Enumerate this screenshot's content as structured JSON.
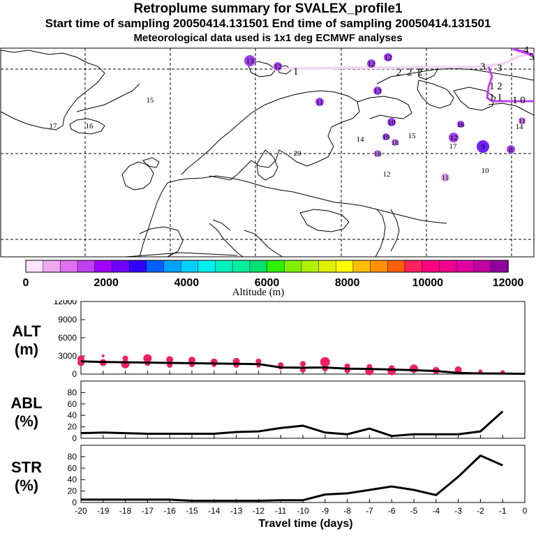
{
  "header": {
    "title": "Retroplume summary for SVALEX_profile1",
    "sampling": "Start time of sampling 20050414.131501     End time of sampling 20050414.131501",
    "met": "Meteorological data used is 1x1 deg ECMWF analyses"
  },
  "colorbar": {
    "label": "Altitude (m)",
    "ticks": [
      0,
      2000,
      4000,
      6000,
      8000,
      10000,
      12000
    ],
    "colors": [
      "#ffe4ff",
      "#f0a8f0",
      "#e070f0",
      "#c040f0",
      "#a000ff",
      "#7000ff",
      "#3000ff",
      "#0060ff",
      "#00a0ff",
      "#00d0ff",
      "#00f0f0",
      "#00f0c0",
      "#00f0a0",
      "#00e070",
      "#30f000",
      "#80f000",
      "#b0f000",
      "#e0f000",
      "#ffff00",
      "#ffc000",
      "#ff9000",
      "#ff6000",
      "#ff2060",
      "#ff0080",
      "#f00090",
      "#e000a0",
      "#c000a0",
      "#9000a0"
    ]
  },
  "map": {
    "labels": [
      {
        "text": "13",
        "color": "#a040f0"
      },
      {
        "text": "12",
        "color": "#a040f0"
      },
      {
        "text": "12",
        "color": "#a040f0"
      },
      {
        "text": "12",
        "color": "#a040f0"
      },
      {
        "text": "13",
        "color": "#a040f0"
      },
      {
        "text": "11",
        "color": "#a040f0"
      },
      {
        "text": "15",
        "color": "#a040f0"
      },
      {
        "text": "17",
        "color": "#a040f0"
      },
      {
        "text": "16",
        "color": "#a040f0"
      },
      {
        "text": "10",
        "color": "#a040f0"
      },
      {
        "text": "19",
        "color": "#a040f0"
      },
      {
        "text": "15",
        "color": "#a040f0"
      },
      {
        "text": "18",
        "color": "#c070f0"
      },
      {
        "text": "14",
        "color": "#a040f0"
      },
      {
        "text": "18",
        "color": "#c070f0"
      },
      {
        "text": "20",
        "color": "#a040f0"
      },
      {
        "text": "16",
        "color": "#a040f0"
      },
      {
        "text": "12",
        "color": "#a040f0"
      },
      {
        "text": "17",
        "color": "#c070f0"
      },
      {
        "text": "9",
        "color": "#7020ff"
      },
      {
        "text": "8",
        "color": "#a040f0"
      },
      {
        "text": "11",
        "color": "#c070f0"
      },
      {
        "text": "14",
        "color": "#c070f0"
      },
      {
        "text": "12",
        "color": "#e0a0f0"
      },
      {
        "text": "11",
        "color": "#e0a0f0"
      },
      {
        "text": "10",
        "color": "#e0a0f0"
      }
    ],
    "trajectory_labels": [
      "1",
      "2",
      "2",
      "2",
      "3",
      "3",
      "4",
      "5",
      "1 2",
      "1 1",
      "1 0"
    ]
  },
  "chart_data": [
    {
      "type": "line",
      "panel": "ALT",
      "ylabel": "ALT (m)",
      "ylim": [
        0,
        12000
      ],
      "yticks": [
        0,
        3000,
        6000,
        9000,
        12000
      ],
      "x": [
        -20,
        -19,
        -18,
        -17,
        -16,
        -15,
        -14,
        -13,
        -12,
        -11,
        -10,
        -9,
        -8,
        -7,
        -6,
        -5,
        -4,
        -3,
        -2,
        -1,
        0
      ],
      "series": [
        {
          "name": "mean altitude",
          "values": [
            2100,
            2000,
            1950,
            1900,
            1850,
            1800,
            1750,
            1700,
            1650,
            1100,
            1050,
            1100,
            900,
            850,
            750,
            650,
            500,
            200,
            100,
            80,
            50
          ]
        }
      ],
      "dots": [
        {
          "x": -20,
          "y": 2500,
          "r": 5
        },
        {
          "x": -20,
          "y": 1900,
          "r": 5
        },
        {
          "x": -19,
          "y": 3000,
          "r": 2
        },
        {
          "x": -19,
          "y": 1900,
          "r": 5
        },
        {
          "x": -18,
          "y": 2600,
          "r": 4
        },
        {
          "x": -18,
          "y": 1650,
          "r": 6
        },
        {
          "x": -17,
          "y": 2600,
          "r": 6
        },
        {
          "x": -17,
          "y": 1800,
          "r": 4
        },
        {
          "x": -16,
          "y": 2400,
          "r": 5
        },
        {
          "x": -16,
          "y": 1500,
          "r": 4
        },
        {
          "x": -15,
          "y": 2300,
          "r": 5
        },
        {
          "x": -15,
          "y": 1600,
          "r": 4
        },
        {
          "x": -14,
          "y": 2000,
          "r": 5
        },
        {
          "x": -14,
          "y": 1500,
          "r": 3
        },
        {
          "x": -13,
          "y": 2100,
          "r": 5
        },
        {
          "x": -13,
          "y": 1500,
          "r": 4
        },
        {
          "x": -12,
          "y": 2100,
          "r": 4
        },
        {
          "x": -12,
          "y": 1400,
          "r": 3
        },
        {
          "x": -11,
          "y": 1500,
          "r": 4
        },
        {
          "x": -11,
          "y": 1100,
          "r": 3
        },
        {
          "x": -10,
          "y": 1700,
          "r": 4
        },
        {
          "x": -10,
          "y": 700,
          "r": 4
        },
        {
          "x": -9,
          "y": 2000,
          "r": 7
        },
        {
          "x": -9,
          "y": 900,
          "r": 4
        },
        {
          "x": -8,
          "y": 1300,
          "r": 4
        },
        {
          "x": -8,
          "y": 600,
          "r": 4
        },
        {
          "x": -7,
          "y": 1200,
          "r": 4
        },
        {
          "x": -7,
          "y": 500,
          "r": 6
        },
        {
          "x": -6,
          "y": 1000,
          "r": 4
        },
        {
          "x": -6,
          "y": 500,
          "r": 6
        },
        {
          "x": -5,
          "y": 900,
          "r": 6
        },
        {
          "x": -5,
          "y": 700,
          "r": 4
        },
        {
          "x": -4,
          "y": 600,
          "r": 5
        },
        {
          "x": -3,
          "y": 700,
          "r": 5
        },
        {
          "x": -2,
          "y": 400,
          "r": 3
        },
        {
          "x": -1,
          "y": 300,
          "r": 3
        }
      ]
    },
    {
      "type": "line",
      "panel": "ABL",
      "ylabel": "ABL (%)",
      "ylim": [
        0,
        100
      ],
      "yticks": [
        0,
        20,
        40,
        60,
        80
      ],
      "x": [
        -20,
        -19,
        -18,
        -17,
        -16,
        -15,
        -14,
        -13,
        -12,
        -11,
        -10,
        -9,
        -8,
        -7,
        -6,
        -5,
        -4,
        -3,
        -2,
        -1
      ],
      "series": [
        {
          "name": "ABL fraction",
          "values": [
            9,
            10,
            9,
            8,
            8,
            8,
            8,
            11,
            12,
            18,
            22,
            10,
            7,
            17,
            4,
            7,
            7,
            7,
            12,
            47
          ]
        }
      ]
    },
    {
      "type": "line",
      "panel": "STR",
      "ylabel": "STR (%)",
      "ylim": [
        0,
        100
      ],
      "yticks": [
        0,
        20,
        40,
        60,
        80
      ],
      "xlabel": "Travel time (days)",
      "xticks": [
        -20,
        -19,
        -18,
        -17,
        -16,
        -15,
        -14,
        -13,
        -12,
        -11,
        -10,
        -9,
        -8,
        -7,
        -6,
        -5,
        -4,
        -3,
        -2,
        -1,
        0
      ],
      "x": [
        -20,
        -19,
        -18,
        -17,
        -16,
        -15,
        -14,
        -13,
        -12,
        -11,
        -10,
        -9,
        -8,
        -7,
        -6,
        -5,
        -4,
        -3,
        -2,
        -1
      ],
      "series": [
        {
          "name": "stratospheric fraction",
          "values": [
            5,
            5,
            5,
            5,
            5,
            3,
            3,
            3,
            3,
            4,
            4,
            14,
            16,
            22,
            28,
            22,
            13,
            45,
            82,
            65
          ]
        }
      ]
    }
  ]
}
